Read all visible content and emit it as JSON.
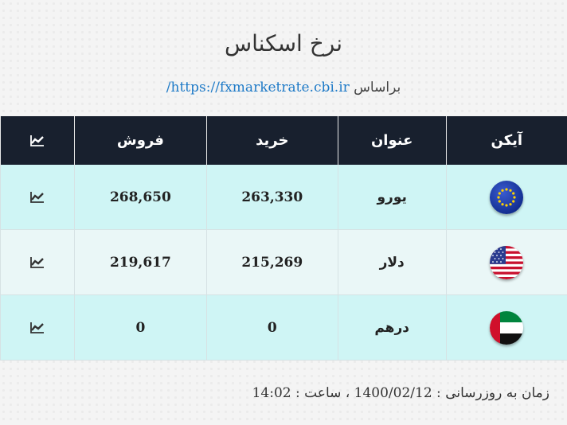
{
  "page": {
    "title": "نرخ اسکناس",
    "source_prefix": "براساس",
    "source_link": "https://fxmarketrate.cbi.ir/"
  },
  "table": {
    "headers": {
      "icon": "آیکن",
      "name": "عنوان",
      "buy": "خرید",
      "sell": "فروش"
    },
    "rows": [
      {
        "flag_icon": "eu-flag-icon",
        "name": "یورو",
        "buy": "263,330",
        "sell": "268,650"
      },
      {
        "flag_icon": "us-flag-icon",
        "name": "دلار",
        "buy": "215,269",
        "sell": "219,617"
      },
      {
        "flag_icon": "uae-flag-icon",
        "name": "درهم",
        "buy": "0",
        "sell": "0"
      }
    ]
  },
  "footer": {
    "update_text": "زمان به روزرسانی : 1400/02/12 ، ساعت : 14:02"
  },
  "colors": {
    "header_bg": "#18202e",
    "row_odd": "#cff5f5",
    "row_even": "#eaf7f7",
    "link": "#1e7ac7"
  }
}
